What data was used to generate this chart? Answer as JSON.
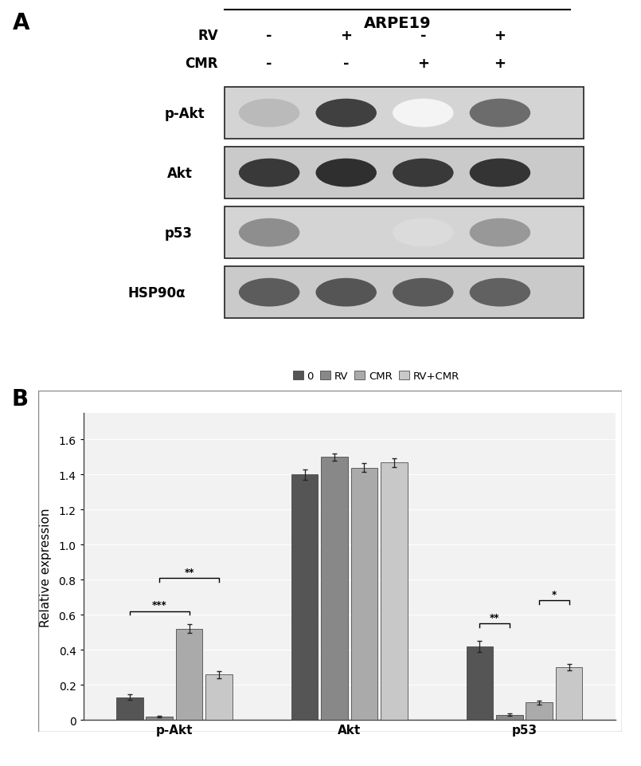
{
  "panel_A_label": "A",
  "panel_B_label": "B",
  "title_arpe": "ARPE19",
  "rv_labels": [
    "-",
    "+",
    "-",
    "+"
  ],
  "cmr_labels": [
    "-",
    "-",
    "+",
    "+"
  ],
  "blot_rows": [
    "p-Akt",
    "Akt",
    "p53",
    "HSP90α"
  ],
  "bar_groups": [
    "p-Akt",
    "Akt",
    "p53"
  ],
  "legend_labels": [
    "0",
    "RV",
    "CMR",
    "RV+CMR"
  ],
  "bar_colors": [
    "#555555",
    "#888888",
    "#aaaaaa",
    "#c8c8c8"
  ],
  "bar_data": {
    "p-Akt": [
      0.13,
      0.02,
      0.52,
      0.26
    ],
    "Akt": [
      1.4,
      1.5,
      1.44,
      1.47
    ],
    "p53": [
      0.42,
      0.03,
      0.1,
      0.3
    ]
  },
  "bar_errors": {
    "p-Akt": [
      0.015,
      0.005,
      0.025,
      0.02
    ],
    "Akt": [
      0.03,
      0.02,
      0.025,
      0.025
    ],
    "p53": [
      0.03,
      0.008,
      0.012,
      0.018
    ]
  },
  "ylabel": "Relative expression",
  "ylim": [
    0,
    1.75
  ],
  "yticks": [
    0,
    0.2,
    0.4,
    0.6,
    0.8,
    1.0,
    1.2,
    1.4,
    1.6
  ],
  "background_color": "#ffffff",
  "blot_bg_light": "#d8d8d8",
  "blot_bg_dark": "#c0c0c0",
  "band_intensities": {
    "p-Akt": [
      0.3,
      0.85,
      0.04,
      0.65
    ],
    "Akt": [
      0.88,
      0.92,
      0.88,
      0.9
    ],
    "p53": [
      0.5,
      0.18,
      0.15,
      0.45
    ],
    "HSP90α": [
      0.72,
      0.75,
      0.73,
      0.7
    ]
  }
}
